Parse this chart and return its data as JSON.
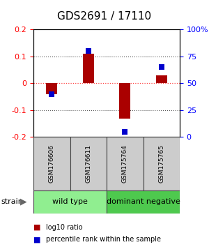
{
  "title": "GDS2691 / 17110",
  "samples": [
    "GSM176606",
    "GSM176611",
    "GSM175764",
    "GSM175765"
  ],
  "log10_ratio": [
    -0.04,
    0.11,
    -0.13,
    0.03
  ],
  "percentile_rank": [
    0.4,
    0.8,
    0.05,
    0.65
  ],
  "groups": [
    {
      "name": "wild type",
      "color": "#90EE90",
      "span": [
        0,
        2
      ]
    },
    {
      "name": "dominant negative",
      "color": "#4EC94E",
      "span": [
        2,
        4
      ]
    }
  ],
  "ylim_left": [
    -0.2,
    0.2
  ],
  "ylim_right": [
    0.0,
    1.0
  ],
  "yticks_left": [
    -0.2,
    -0.1,
    0.0,
    0.1,
    0.2
  ],
  "ytick_labels_left": [
    "-0.2",
    "-0.1",
    "0",
    "0.1",
    "0.2"
  ],
  "yticks_right": [
    0.0,
    0.25,
    0.5,
    0.75,
    1.0
  ],
  "ytick_labels_right": [
    "0",
    "25",
    "50",
    "75",
    "100%"
  ],
  "bar_color": "#AA0000",
  "dot_color": "#0000CC",
  "bar_width": 0.3,
  "dot_size": 35,
  "zero_line_color": "#FF4444",
  "hline_color": "#555555",
  "sample_box_color": "#CCCCCC",
  "sample_box_edge": "#444444",
  "legend_red_label": "log10 ratio",
  "legend_blue_label": "percentile rank within the sample",
  "strain_label": "strain",
  "fig_bg": "#FFFFFF",
  "title_fontsize": 11,
  "tick_fontsize": 8,
  "sample_fontsize": 6.5,
  "group_fontsize": 8,
  "legend_fontsize": 7
}
